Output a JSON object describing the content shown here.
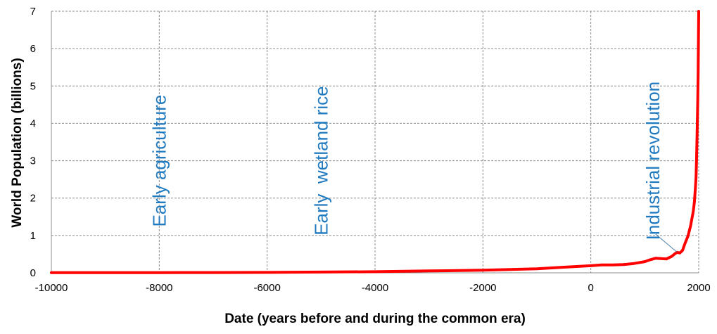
{
  "chart_data": {
    "type": "line",
    "xlabel": "Date (years before and during the common era)",
    "ylabel": "World Population (billions)",
    "xlim": [
      -10000,
      2000
    ],
    "ylim": [
      0,
      7
    ],
    "x_ticks": [
      "-10000",
      "-8000",
      "-6000",
      "-4000",
      "-2000",
      "0",
      "2000"
    ],
    "y_ticks": [
      "0",
      "1",
      "2",
      "3",
      "4",
      "5",
      "6",
      "7"
    ],
    "grid": true,
    "line_color": "#ff0000",
    "annotation_color": "#1f7ac0",
    "annotations": [
      {
        "text": "Early agriculture",
        "x": -8000,
        "y": 3.0
      },
      {
        "text": "Early  wetland rice",
        "x": -5000,
        "y": 3.0
      },
      {
        "text": "Industrial revolution",
        "x": 1150,
        "y": 3.0,
        "pointer_to": [
          1600,
          0.55
        ]
      }
    ],
    "series": [
      {
        "x": [
          -10000,
          -9000,
          -8000,
          -7000,
          -6000,
          -5000,
          -4000,
          -3000,
          -2000,
          -1000,
          -500,
          0,
          200,
          400,
          600,
          800,
          1000,
          1100,
          1200,
          1300,
          1400,
          1500,
          1550,
          1600,
          1650,
          1700,
          1750,
          1800,
          1850,
          1900,
          1920,
          1940,
          1950,
          1960,
          1970,
          1980,
          1990,
          2000
        ],
        "y": [
          0.004,
          0.005,
          0.006,
          0.008,
          0.012,
          0.02,
          0.03,
          0.05,
          0.07,
          0.11,
          0.15,
          0.19,
          0.21,
          0.21,
          0.22,
          0.25,
          0.3,
          0.35,
          0.39,
          0.38,
          0.37,
          0.44,
          0.5,
          0.55,
          0.53,
          0.6,
          0.8,
          0.98,
          1.26,
          1.65,
          1.9,
          2.3,
          2.55,
          3.0,
          3.7,
          4.45,
          5.3,
          7.0
        ]
      }
    ]
  }
}
